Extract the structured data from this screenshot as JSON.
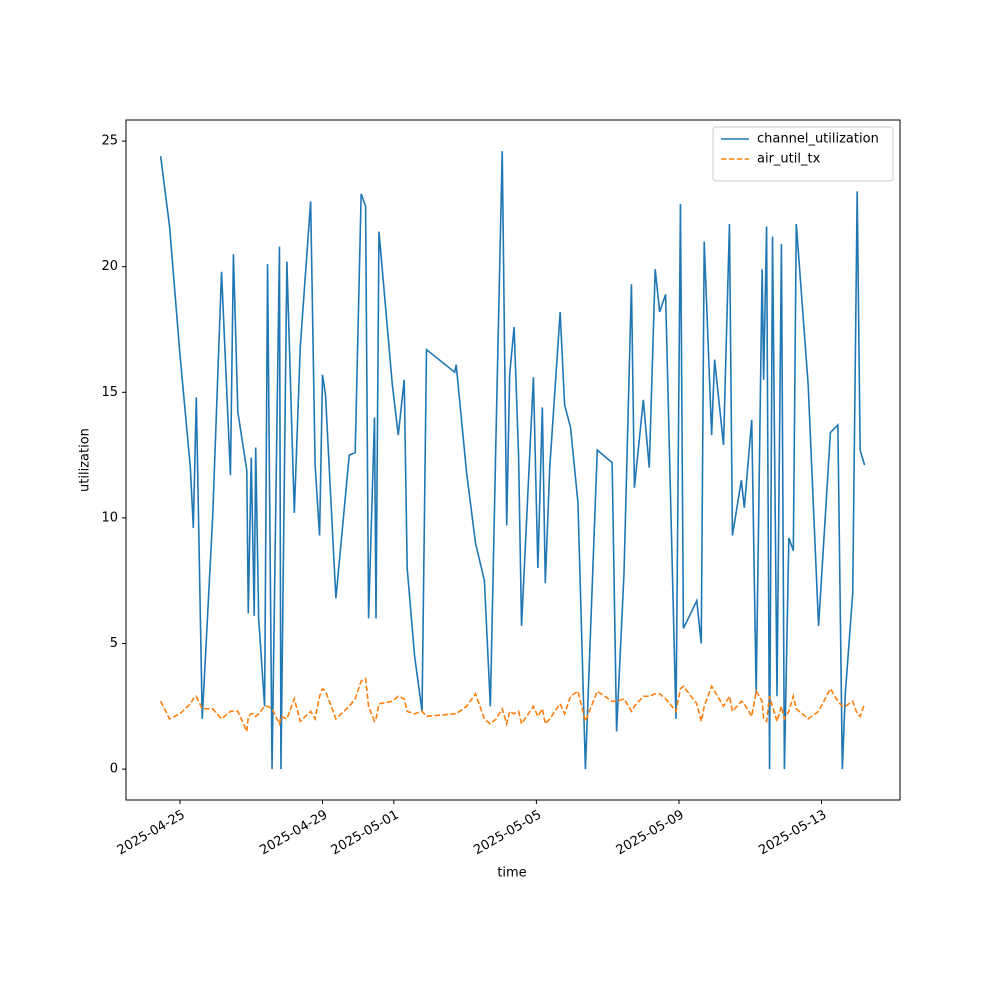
{
  "chart_data": {
    "type": "line",
    "xlabel": "time",
    "ylabel": "utilization",
    "x": [
      "2025-04-24T11:00",
      "2025-04-24T17:00",
      "2025-04-25T00:00",
      "2025-04-25T07:00",
      "2025-04-25T09:00",
      "2025-04-25T11:00",
      "2025-04-25T15:00",
      "2025-04-25T22:00",
      "2025-04-26T04:00",
      "2025-04-26T10:00",
      "2025-04-26T12:00",
      "2025-04-26T15:00",
      "2025-04-26T21:00",
      "2025-04-26T22:00",
      "2025-04-27T00:00",
      "2025-04-27T02:00",
      "2025-04-27T03:00",
      "2025-04-27T05:00",
      "2025-04-27T09:00",
      "2025-04-27T11:00",
      "2025-04-27T14:00",
      "2025-04-27T19:00",
      "2025-04-27T20:00",
      "2025-04-28T00:00",
      "2025-04-28T05:00",
      "2025-04-28T09:00",
      "2025-04-28T16:00",
      "2025-04-28T19:00",
      "2025-04-28T22:00",
      "2025-04-29T00:00",
      "2025-04-29T02:00",
      "2025-04-29T09:00",
      "2025-04-29T18:00",
      "2025-04-29T22:00",
      "2025-04-30T02:00",
      "2025-04-30T05:00",
      "2025-04-30T07:00",
      "2025-04-30T11:00",
      "2025-04-30T12:00",
      "2025-04-30T14:00",
      "2025-04-30T23:00",
      "2025-05-01T03:00",
      "2025-05-01T07:00",
      "2025-05-01T09:00",
      "2025-05-01T14:00",
      "2025-05-01T19:00",
      "2025-05-01T22:00",
      "2025-05-02T17:00",
      "2025-05-02T18:00",
      "2025-05-03T01:00",
      "2025-05-03T07:00",
      "2025-05-03T13:00",
      "2025-05-03T17:00",
      "2025-05-03T21:00",
      "2025-05-04T01:00",
      "2025-05-04T04:00",
      "2025-05-04T06:00",
      "2025-05-04T09:00",
      "2025-05-04T12:00",
      "2025-05-04T14:00",
      "2025-05-04T22:00",
      "2025-05-05T01:00",
      "2025-05-05T04:00",
      "2025-05-05T06:00",
      "2025-05-05T09:00",
      "2025-05-05T16:00",
      "2025-05-05T19:00",
      "2025-05-05T23:00",
      "2025-05-06T04:00",
      "2025-05-06T09:00",
      "2025-05-06T17:00",
      "2025-05-07T03:00",
      "2025-05-07T06:00",
      "2025-05-07T11:00",
      "2025-05-07T16:00",
      "2025-05-07T18:00",
      "2025-05-08T00:00",
      "2025-05-08T04:00",
      "2025-05-08T08:00",
      "2025-05-08T11:00",
      "2025-05-08T15:00",
      "2025-05-08T22:00",
      "2025-05-09T01:00",
      "2025-05-09T03:00",
      "2025-05-09T12:00",
      "2025-05-09T15:00",
      "2025-05-09T17:00",
      "2025-05-09T22:00",
      "2025-05-10T00:00",
      "2025-05-10T06:00",
      "2025-05-10T10:00",
      "2025-05-10T12:00",
      "2025-05-10T18:00",
      "2025-05-10T20:00",
      "2025-05-11T01:00",
      "2025-05-11T04:00",
      "2025-05-11T08:00",
      "2025-05-11T09:00",
      "2025-05-11T11:00",
      "2025-05-11T13:00",
      "2025-05-11T15:00",
      "2025-05-11T18:00",
      "2025-05-11T21:00",
      "2025-05-11T23:00",
      "2025-05-12T02:00",
      "2025-05-12T05:00",
      "2025-05-12T07:00",
      "2025-05-12T15:00",
      "2025-05-12T22:00",
      "2025-05-13T06:00",
      "2025-05-13T11:00",
      "2025-05-13T14:00",
      "2025-05-13T16:00",
      "2025-05-13T21:00",
      "2025-05-14T00:00",
      "2025-05-14T02:00",
      "2025-05-14T05:00"
    ],
    "series": [
      {
        "name": "channel_utilization",
        "color": "#1f77b4",
        "dash": "solid",
        "values": [
          24.4,
          21.6,
          16.5,
          12,
          9.6,
          14.8,
          2.0,
          10,
          19.8,
          11.7,
          20.5,
          14.2,
          11.9,
          6.2,
          12.4,
          6.1,
          12.8,
          6.0,
          2.5,
          20.1,
          0,
          20.8,
          0,
          20.2,
          10.2,
          16.8,
          22.6,
          12.1,
          9.3,
          15.7,
          14.9,
          6.8,
          12.5,
          12.6,
          22.9,
          22.4,
          6.0,
          14.0,
          6.0,
          21.4,
          15.3,
          13.3,
          15.5,
          8.0,
          4.5,
          2.3,
          16.7,
          15.8,
          16.1,
          11.8,
          9.0,
          7.5,
          2.5,
          13.8,
          24.6,
          9.7,
          15.7,
          17.6,
          12.5,
          5.7,
          15.6,
          8.0,
          14.4,
          7.4,
          12.0,
          18.2,
          14.5,
          13.6,
          10.6,
          0,
          12.7,
          12.2,
          1.5,
          7.8,
          19.3,
          11.2,
          14.7,
          12.0,
          19.9,
          18.2,
          18.9,
          2.0,
          22.5,
          5.6,
          6.7,
          5.0,
          21.0,
          13.3,
          16.3,
          12.9,
          21.7,
          9.3,
          11.5,
          10.4,
          13.9,
          3.0,
          19.9,
          15.5,
          21.6,
          0,
          21.2,
          2.9,
          20.9,
          0,
          9.2,
          8.7,
          21.7,
          15.3,
          5.7,
          13.4,
          13.7,
          0,
          3.0,
          7.0,
          23.0,
          12.7,
          12.1
        ]
      },
      {
        "name": "air_util_tx",
        "color": "#ff7f0e",
        "dash": "dashed",
        "values": [
          2.7,
          2.0,
          2.2,
          2.6,
          2.8,
          2.9,
          2.4,
          2.4,
          2.0,
          2.3,
          2.3,
          2.3,
          1.5,
          2.1,
          2.2,
          2.2,
          2.1,
          2.2,
          2.5,
          2.5,
          2.4,
          1.8,
          2.1,
          2.0,
          2.8,
          1.9,
          2.3,
          2.0,
          2.9,
          3.2,
          3.1,
          2.0,
          2.5,
          2.8,
          3.5,
          3.6,
          2.5,
          1.9,
          2.0,
          2.6,
          2.7,
          2.9,
          2.8,
          2.3,
          2.2,
          2.3,
          2.1,
          2.2,
          2.2,
          2.5,
          3.0,
          2.0,
          1.8,
          2.0,
          2.4,
          1.8,
          2.3,
          2.2,
          2.3,
          1.8,
          2.5,
          2.1,
          2.4,
          1.8,
          2.0,
          2.6,
          2.2,
          2.9,
          3.1,
          1.9,
          3.1,
          2.7,
          2.7,
          2.8,
          2.3,
          2.5,
          2.9,
          2.9,
          3.0,
          3.0,
          2.8,
          2.3,
          3.2,
          3.3,
          2.6,
          1.9,
          2.5,
          3.3,
          3.1,
          2.5,
          2.9,
          2.3,
          2.7,
          2.6,
          2.1,
          3.1,
          2.7,
          2.0,
          1.9,
          2.9,
          2.5,
          1.9,
          2.5,
          2.0,
          2.3,
          2.9,
          2.4,
          2.0,
          2.3,
          3.2,
          2.7,
          2.5,
          2.5,
          2.7,
          2.2,
          2.1,
          2.6
        ]
      }
    ],
    "xlim": [
      "2025-04-23T11:40",
      "2025-05-15T04:50"
    ],
    "xticks": [
      "2025-04-25",
      "2025-04-29",
      "2025-05-01",
      "2025-05-05",
      "2025-05-09",
      "2025-05-13"
    ],
    "ylim": [
      -1.23,
      25.84
    ],
    "yticks": [
      0,
      5,
      10,
      15,
      20,
      25
    ],
    "grid": false,
    "legend": "upper right"
  }
}
